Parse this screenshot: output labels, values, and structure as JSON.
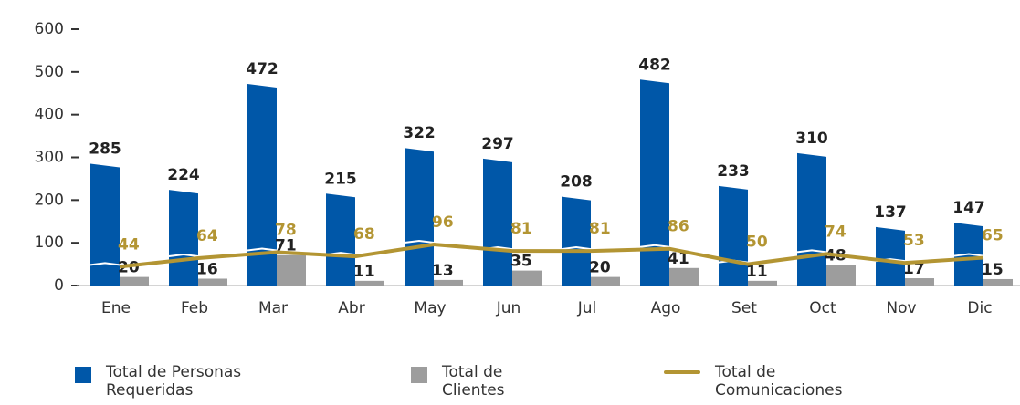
{
  "chart_data": {
    "type": "bar-line",
    "categories": [
      "Ene",
      "Feb",
      "Mar",
      "Abr",
      "May",
      "Jun",
      "Jul",
      "Ago",
      "Set",
      "Oct",
      "Nov",
      "Dic"
    ],
    "series": [
      {
        "name": "Total de Personas Requeridas",
        "color": "#0057a8",
        "kind": "bar",
        "values": [
          285,
          224,
          472,
          215,
          322,
          297,
          208,
          482,
          233,
          310,
          137,
          147
        ]
      },
      {
        "name": "Total de Clientes",
        "color": "#9d9d9d",
        "kind": "bar",
        "values": [
          20,
          16,
          71,
          11,
          13,
          35,
          20,
          41,
          11,
          48,
          17,
          15
        ]
      },
      {
        "name": "Total de Comunicaciones",
        "color": "#b39533",
        "kind": "line",
        "values": [
          44,
          64,
          78,
          68,
          96,
          81,
          81,
          86,
          50,
          74,
          53,
          65
        ]
      }
    ],
    "ylim": [
      0,
      600
    ],
    "yticks": [
      0,
      100,
      200,
      300,
      400,
      500,
      600
    ],
    "grid": false,
    "legend": "bottom"
  }
}
